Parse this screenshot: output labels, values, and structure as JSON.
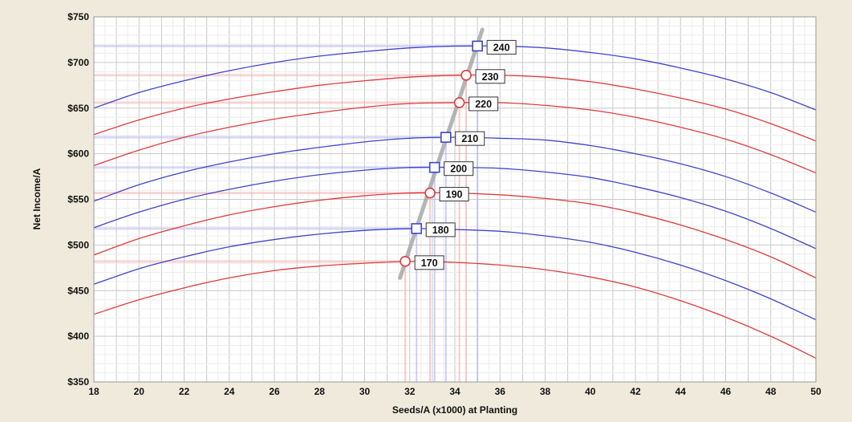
{
  "chart_data": {
    "type": "line",
    "title": "",
    "xlabel": "Seeds/A (x1000) at Planting",
    "ylabel": "Net Income/A",
    "xlim": [
      18,
      50
    ],
    "ylim": [
      350,
      750
    ],
    "x_ticks": [
      18,
      20,
      22,
      24,
      26,
      28,
      30,
      32,
      34,
      36,
      38,
      40,
      42,
      44,
      46,
      48,
      50
    ],
    "x_tick_labels": [
      "18",
      "20",
      "22",
      "24",
      "26",
      "28",
      "30",
      "32",
      "34",
      "36",
      "38",
      "40",
      "42",
      "44",
      "46",
      "48",
      "50"
    ],
    "y_ticks": [
      350,
      400,
      450,
      500,
      550,
      600,
      650,
      700,
      750
    ],
    "y_tick_labels": [
      "$350",
      "$400",
      "$450",
      "$500",
      "$550",
      "$600",
      "$650",
      "$700",
      "$750"
    ],
    "grid": true,
    "legend": "none",
    "x": [
      18,
      20,
      22,
      24,
      26,
      28,
      30,
      32,
      34,
      36,
      38,
      40,
      42,
      44,
      46,
      48,
      50
    ],
    "series": [
      {
        "label": "240",
        "color": "#3f45cc",
        "marker": "square",
        "opt_x": 35.0,
        "opt_y": 718,
        "values": [
          650,
          667,
          680,
          691,
          700,
          707,
          712,
          716,
          718,
          718,
          716,
          711,
          704,
          694,
          682,
          667,
          648
        ]
      },
      {
        "label": "230",
        "color": "#e03c3c",
        "marker": "circle",
        "opt_x": 34.5,
        "opt_y": 686,
        "values": [
          621,
          637,
          650,
          660,
          668,
          675,
          680,
          684,
          686,
          686,
          684,
          679,
          671,
          661,
          649,
          633,
          614
        ]
      },
      {
        "label": "220",
        "color": "#e03c3c",
        "marker": "circle",
        "opt_x": 34.2,
        "opt_y": 656,
        "values": [
          587,
          604,
          618,
          629,
          638,
          645,
          651,
          655,
          656,
          656,
          653,
          648,
          640,
          629,
          616,
          599,
          579
        ]
      },
      {
        "label": "210",
        "color": "#3f45cc",
        "marker": "square",
        "opt_x": 33.6,
        "opt_y": 618,
        "values": [
          548,
          566,
          580,
          591,
          600,
          607,
          613,
          617,
          618,
          617,
          615,
          609,
          600,
          589,
          575,
          557,
          536
        ]
      },
      {
        "label": "200",
        "color": "#3f45cc",
        "marker": "square",
        "opt_x": 33.1,
        "opt_y": 585,
        "values": [
          519,
          536,
          550,
          561,
          570,
          577,
          582,
          585,
          585,
          584,
          580,
          574,
          564,
          552,
          537,
          518,
          496
        ]
      },
      {
        "label": "190",
        "color": "#e03c3c",
        "marker": "circle",
        "opt_x": 32.9,
        "opt_y": 557,
        "values": [
          489,
          507,
          521,
          533,
          542,
          549,
          554,
          557,
          557,
          555,
          551,
          545,
          535,
          522,
          506,
          487,
          464
        ]
      },
      {
        "label": "180",
        "color": "#3f45cc",
        "marker": "square",
        "opt_x": 32.3,
        "opt_y": 518,
        "values": [
          457,
          474,
          487,
          498,
          506,
          512,
          516,
          518,
          517,
          515,
          510,
          503,
          492,
          478,
          461,
          441,
          418
        ]
      },
      {
        "label": "170",
        "color": "#e03c3c",
        "marker": "circle",
        "opt_x": 31.8,
        "opt_y": 482,
        "values": [
          424,
          440,
          453,
          464,
          472,
          477,
          480,
          482,
          481,
          478,
          473,
          465,
          454,
          439,
          421,
          400,
          376
        ]
      }
    ]
  }
}
